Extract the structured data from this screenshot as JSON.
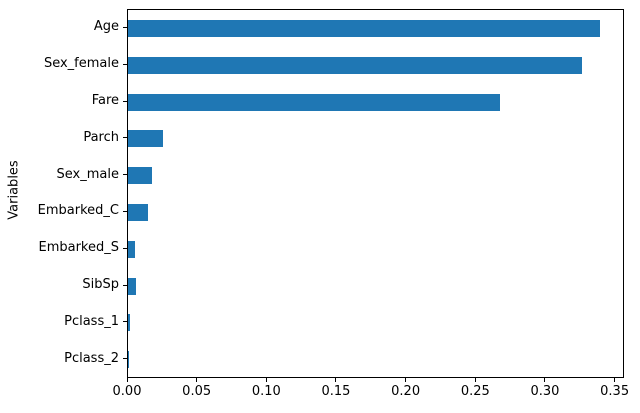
{
  "chart_data": {
    "type": "bar",
    "orientation": "horizontal",
    "title": "",
    "xlabel": "",
    "ylabel": "Variables",
    "categories": [
      "Age",
      "Sex_female",
      "Fare",
      "Parch",
      "Sex_male",
      "Embarked_C",
      "Embarked_S",
      "SibSp",
      "Pclass_1",
      "Pclass_2"
    ],
    "values": [
      0.339,
      0.326,
      0.267,
      0.025,
      0.017,
      0.014,
      0.005,
      0.006,
      0.0017,
      0.0002
    ],
    "xlim": [
      0,
      0.356
    ],
    "x_ticks": [
      0.0,
      0.05,
      0.1,
      0.15,
      0.2,
      0.25,
      0.3,
      0.35
    ],
    "x_tick_labels": [
      "0.00",
      "0.05",
      "0.10",
      "0.15",
      "0.20",
      "0.25",
      "0.30",
      "0.35"
    ],
    "bar_color": "#1f77b4",
    "spine_color": "#000000",
    "background_color": "#ffffff",
    "grid": false,
    "legend": null
  }
}
